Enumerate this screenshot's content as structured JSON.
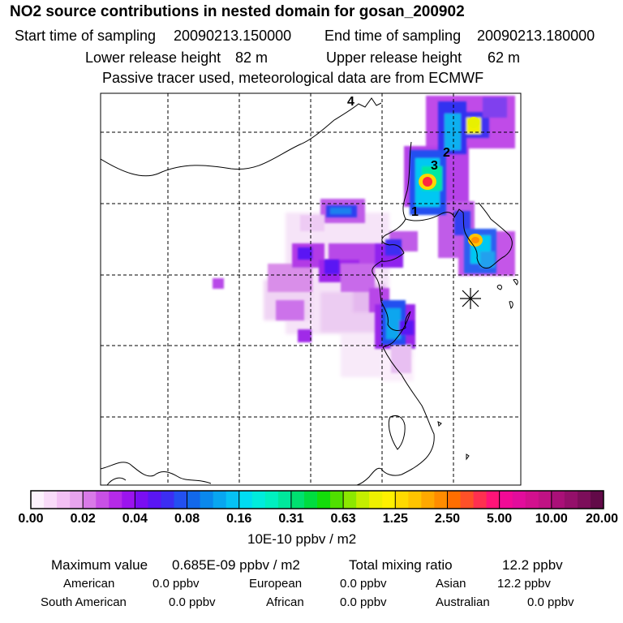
{
  "title": "NO2 source contributions in nested domain for gosan_200902",
  "start_label": "Start time of sampling",
  "start_value": "20090213.150000",
  "end_label": "End time of sampling",
  "end_value": "20090213.180000",
  "lower_label": "Lower release height",
  "lower_value": "82 m",
  "upper_label": "Upper release height",
  "upper_value": "62 m",
  "note": "Passive tracer used, meteorological data are from ECMWF",
  "map_labels": [
    "1",
    "2",
    "3",
    "4"
  ],
  "colorbar": {
    "ticks": [
      "0.00",
      "0.02",
      "0.04",
      "0.08",
      "0.16",
      "0.31",
      "0.63",
      "1.25",
      "2.50",
      "5.00",
      "10.00",
      "20.00"
    ],
    "unit": "10E-10 ppbv / m2",
    "colors": [
      "#fdf2fd",
      "#f9dbf9",
      "#f3c0f4",
      "#e8a4ee",
      "#d97ae8",
      "#c850e6",
      "#b52ae8",
      "#9b14ee",
      "#7a0ef2",
      "#5a16f4",
      "#3c2ef2",
      "#2350f0",
      "#1268ea",
      "#0a88ec",
      "#08a6f0",
      "#06c2f4",
      "#00dcf2",
      "#00ecdc",
      "#00f0c0",
      "#00e89c",
      "#00e070",
      "#00dc40",
      "#14dc0a",
      "#50e000",
      "#8ce800",
      "#c4ee00",
      "#eef000",
      "#fff000",
      "#ffda00",
      "#ffc400",
      "#ffa800",
      "#ff8c00",
      "#ff6e00",
      "#ff5028",
      "#ff3050",
      "#ff1478",
      "#f20a96",
      "#e20c9c",
      "#d2108e",
      "#c01284",
      "#aa1078",
      "#94106a",
      "#7c0e5a",
      "#620a48"
    ]
  },
  "footer": {
    "max_label": "Maximum value",
    "max_value": "0.685E-09 ppbv / m2",
    "total_label": "Total mixing ratio",
    "total_value": "12.2 ppbv",
    "sources": [
      {
        "name": "American",
        "value": "0.0 ppbv"
      },
      {
        "name": "European",
        "value": "0.0 ppbv"
      },
      {
        "name": "Asian",
        "value": "12.2 ppbv"
      },
      {
        "name": "South American",
        "value": "0.0 ppbv"
      },
      {
        "name": "African",
        "value": "0.0 ppbv"
      },
      {
        "name": "Australian",
        "value": "0.0 ppbv"
      }
    ]
  }
}
